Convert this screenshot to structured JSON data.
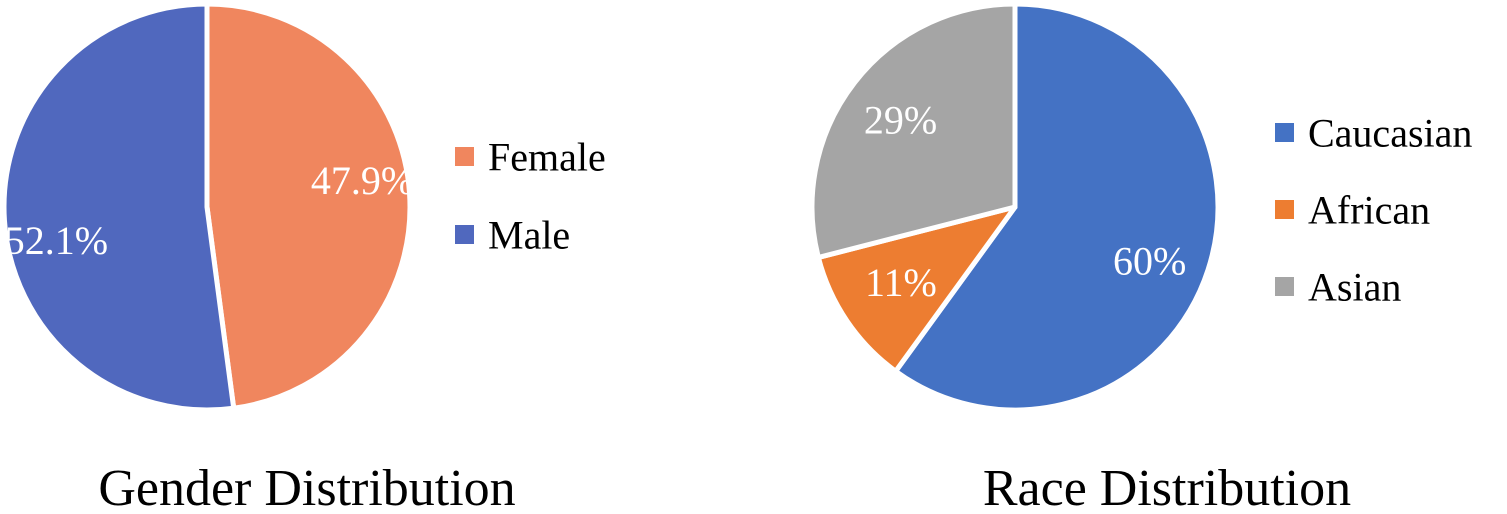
{
  "chart_data": [
    {
      "type": "pie",
      "title": "Gender Distribution",
      "legend_position": "right",
      "start_angle_deg": 0,
      "direction": "clockwise",
      "slices": [
        {
          "label": "Female",
          "value": 47.9,
          "display": "47.9%",
          "color": "#F0865E"
        },
        {
          "label": "Male",
          "value": 52.1,
          "display": "52.1%",
          "color": "#5068BE"
        }
      ]
    },
    {
      "type": "pie",
      "title": "Race Distribution",
      "legend_position": "right",
      "start_angle_deg": 0,
      "direction": "clockwise",
      "slices": [
        {
          "label": "Caucasian",
          "value": 60,
          "display": "60%",
          "color": "#4472C4"
        },
        {
          "label": "African",
          "value": 11,
          "display": "11%",
          "color": "#ED7D31"
        },
        {
          "label": "Asian",
          "value": 29,
          "display": "29%",
          "color": "#A5A5A5"
        }
      ]
    }
  ]
}
